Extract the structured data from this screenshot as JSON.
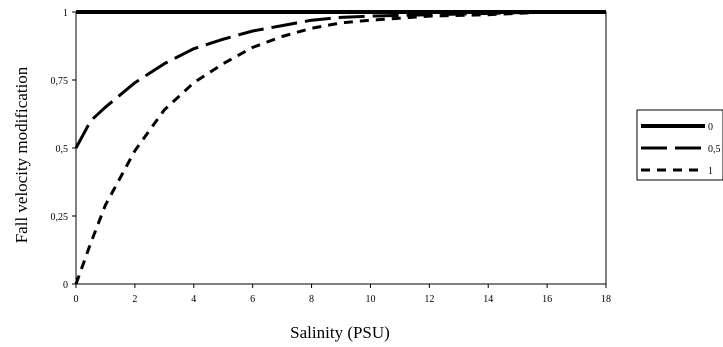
{
  "chart_data": {
    "type": "line",
    "title": "",
    "xlabel": "Salinity (PSU)",
    "ylabel": "Fall velocity modification",
    "xlim": [
      0,
      18
    ],
    "ylim": [
      0,
      1
    ],
    "x_ticks": [
      "0",
      "2",
      "4",
      "6",
      "8",
      "10",
      "12",
      "14",
      "16",
      "18"
    ],
    "y_ticks": [
      "0",
      "0,25",
      "0,5",
      "0,75",
      "1"
    ],
    "grid": false,
    "legend_position": "right",
    "series": [
      {
        "name": "0",
        "style": "solid",
        "x": [
          0,
          2,
          4,
          6,
          8,
          10,
          12,
          14,
          16,
          18
        ],
        "y": [
          1,
          1,
          1,
          1,
          1,
          1,
          1,
          1,
          1,
          1
        ]
      },
      {
        "name": "0,5",
        "style": "long-dash",
        "x": [
          0,
          0.5,
          1,
          2,
          3,
          4,
          5,
          6,
          7,
          8,
          9,
          10,
          12,
          14,
          16,
          18
        ],
        "y": [
          0.5,
          0.6,
          0.65,
          0.74,
          0.81,
          0.865,
          0.9,
          0.93,
          0.95,
          0.97,
          0.98,
          0.985,
          0.99,
          0.995,
          1.0,
          1.0
        ]
      },
      {
        "name": "1",
        "style": "short-dash",
        "x": [
          0,
          0.5,
          1,
          2,
          3,
          4,
          5,
          6,
          7,
          8,
          9,
          10,
          12,
          14,
          16,
          18
        ],
        "y": [
          0.0,
          0.15,
          0.29,
          0.49,
          0.64,
          0.74,
          0.81,
          0.87,
          0.91,
          0.94,
          0.96,
          0.97,
          0.985,
          0.99,
          1.0,
          1.0
        ]
      }
    ]
  }
}
